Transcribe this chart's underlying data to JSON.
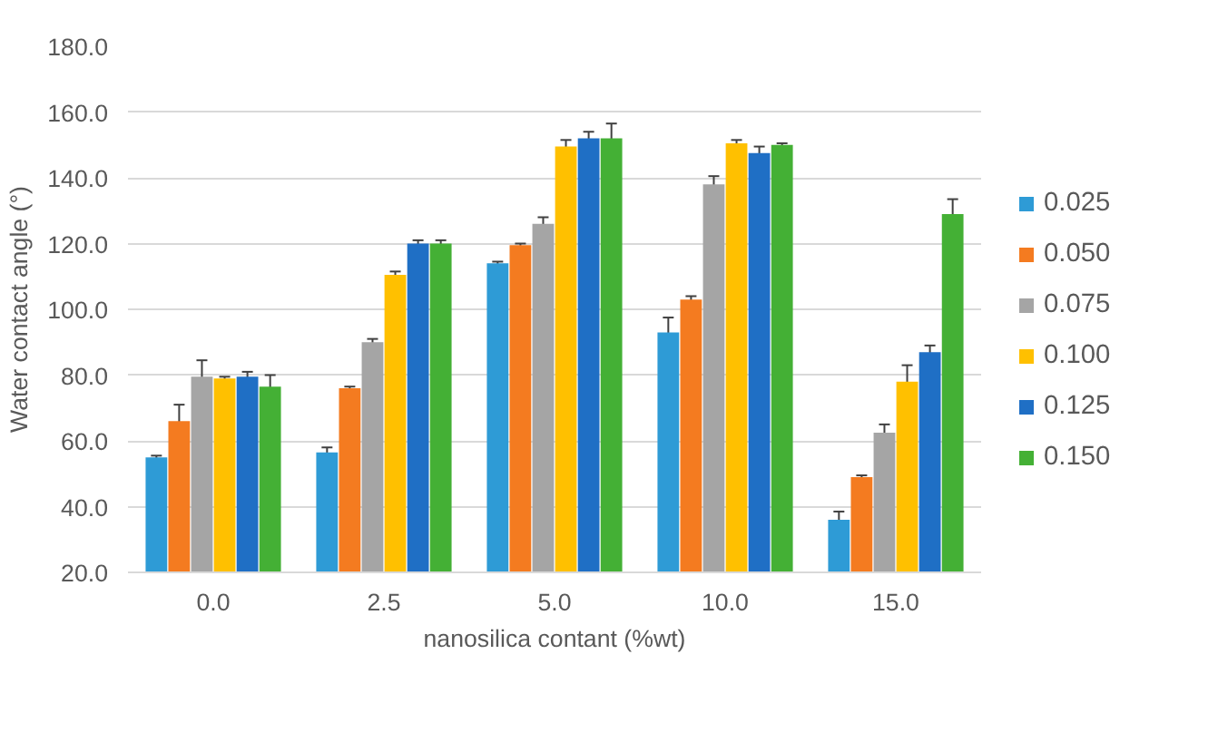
{
  "chart_data": {
    "type": "bar",
    "xlabel": "nanosilica contant (%wt)",
    "ylabel": "Water contact angle (°)",
    "categories": [
      "0.0",
      "2.5",
      "5.0",
      "10.0",
      "15.0"
    ],
    "ylim": [
      20,
      180
    ],
    "yticks": [
      {
        "value": 20,
        "label": "20.0"
      },
      {
        "value": 40,
        "label": "40.0"
      },
      {
        "value": 60,
        "label": "60.0"
      },
      {
        "value": 80,
        "label": "80.0"
      },
      {
        "value": 100,
        "label": "100.0"
      },
      {
        "value": 120,
        "label": "120.0"
      },
      {
        "value": 140,
        "label": "140.0"
      },
      {
        "value": 160,
        "label": "160.0"
      },
      {
        "value": 180,
        "label": "180.0"
      }
    ],
    "grid": "y",
    "legend": "right",
    "series": [
      {
        "name": "0.025",
        "color": "#2e9bd6",
        "values": [
          55,
          56.5,
          114,
          93,
          36
        ],
        "errors": [
          0.5,
          1.5,
          0.5,
          4.5,
          2.5
        ]
      },
      {
        "name": "0.050",
        "color": "#f47b20",
        "values": [
          66,
          76,
          119.5,
          103,
          49
        ],
        "errors": [
          5,
          0.5,
          0.5,
          1,
          0.5
        ]
      },
      {
        "name": "0.075",
        "color": "#a5a5a5",
        "values": [
          79.5,
          90,
          126,
          138,
          62.5
        ],
        "errors": [
          5,
          1,
          2,
          2.5,
          2.5
        ]
      },
      {
        "name": "0.100",
        "color": "#ffc000",
        "values": [
          79,
          110.5,
          149.5,
          150.5,
          78
        ],
        "errors": [
          0.5,
          1,
          2,
          1,
          5
        ]
      },
      {
        "name": "0.125",
        "color": "#1f6fc5",
        "values": [
          79.5,
          120,
          152,
          147.5,
          87
        ],
        "errors": [
          1.5,
          1,
          2,
          2,
          2
        ]
      },
      {
        "name": "0.150",
        "color": "#44b035",
        "values": [
          76.5,
          120,
          152,
          150,
          129
        ],
        "errors": [
          3.5,
          1,
          4.5,
          0.5,
          4.5
        ]
      }
    ]
  }
}
